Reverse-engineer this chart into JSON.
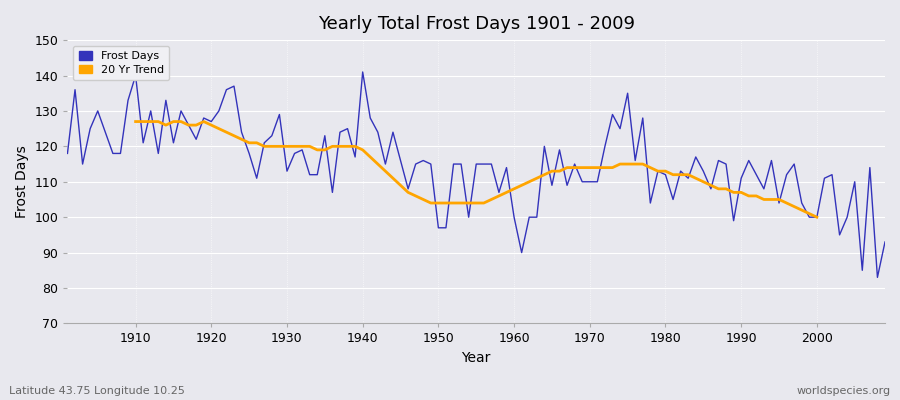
{
  "title": "Yearly Total Frost Days 1901 - 2009",
  "xlabel": "Year",
  "ylabel": "Frost Days",
  "subtitle_left": "Latitude 43.75 Longitude 10.25",
  "subtitle_right": "worldspecies.org",
  "ylim": [
    70,
    150
  ],
  "xlim": [
    1901,
    2009
  ],
  "line_color": "#3333bb",
  "trend_color": "#FFA500",
  "bg_color": "#e8e8ee",
  "grid_color": "#ffffff",
  "years": [
    1901,
    1902,
    1903,
    1904,
    1905,
    1906,
    1907,
    1908,
    1909,
    1910,
    1911,
    1912,
    1913,
    1914,
    1915,
    1916,
    1917,
    1918,
    1919,
    1920,
    1921,
    1922,
    1923,
    1924,
    1925,
    1926,
    1927,
    1928,
    1929,
    1930,
    1931,
    1932,
    1933,
    1934,
    1935,
    1936,
    1937,
    1938,
    1939,
    1940,
    1941,
    1942,
    1943,
    1944,
    1945,
    1946,
    1947,
    1948,
    1949,
    1950,
    1951,
    1952,
    1953,
    1954,
    1955,
    1956,
    1957,
    1958,
    1959,
    1960,
    1961,
    1962,
    1963,
    1964,
    1965,
    1966,
    1967,
    1968,
    1969,
    1970,
    1971,
    1972,
    1973,
    1974,
    1975,
    1976,
    1977,
    1978,
    1979,
    1980,
    1981,
    1982,
    1983,
    1984,
    1985,
    1986,
    1987,
    1988,
    1989,
    1990,
    1991,
    1992,
    1993,
    1994,
    1995,
    1996,
    1997,
    1998,
    1999,
    2000,
    2001,
    2002,
    2003,
    2004,
    2005,
    2006,
    2007,
    2008,
    2009
  ],
  "frost_days": [
    118,
    136,
    115,
    125,
    130,
    124,
    118,
    118,
    133,
    140,
    121,
    130,
    118,
    133,
    121,
    130,
    126,
    122,
    128,
    127,
    130,
    136,
    137,
    124,
    118,
    111,
    121,
    123,
    129,
    113,
    118,
    119,
    112,
    112,
    123,
    107,
    124,
    125,
    117,
    141,
    128,
    124,
    115,
    124,
    116,
    108,
    115,
    116,
    115,
    97,
    97,
    115,
    115,
    100,
    115,
    115,
    115,
    107,
    114,
    100,
    90,
    100,
    100,
    120,
    109,
    119,
    109,
    115,
    110,
    110,
    110,
    120,
    129,
    125,
    135,
    116,
    128,
    104,
    113,
    112,
    105,
    113,
    111,
    117,
    113,
    108,
    116,
    115,
    99,
    111,
    116,
    112,
    108,
    116,
    104,
    112,
    115,
    104,
    100,
    100,
    111,
    112,
    95,
    100,
    110,
    85,
    114,
    83,
    93
  ],
  "trend_years": [
    1901,
    1902,
    1903,
    1904,
    1905,
    1906,
    1907,
    1908,
    1909,
    1910,
    1911,
    1912,
    1913,
    1914,
    1915,
    1916,
    1917,
    1918,
    1919,
    1920,
    1921,
    1922,
    1923,
    1924,
    1925,
    1926,
    1927,
    1928,
    1929,
    1930,
    1931,
    1932,
    1933,
    1934,
    1935,
    1936,
    1937,
    1938,
    1939,
    1940,
    1941,
    1942,
    1943,
    1944,
    1945,
    1946,
    1947,
    1948,
    1949,
    1950,
    1951,
    1952,
    1953,
    1954,
    1955,
    1956,
    1957,
    1958,
    1959,
    1960,
    1961,
    1962,
    1963,
    1964,
    1965,
    1966,
    1967,
    1968,
    1969,
    1970,
    1971,
    1972,
    1973,
    1974,
    1975,
    1976,
    1977,
    1978,
    1979,
    1980,
    1981,
    1982,
    1983,
    1984,
    1985,
    1986,
    1987,
    1988,
    1989,
    1990,
    1991,
    1992,
    1993,
    1994,
    1995,
    1996,
    1997,
    1998,
    1999,
    2000,
    2001,
    2002,
    2003,
    2004,
    2005,
    2006,
    2007,
    2008,
    2009
  ],
  "trend_values": [
    null,
    null,
    null,
    null,
    null,
    null,
    null,
    null,
    null,
    127,
    127,
    127,
    127,
    126,
    127,
    127,
    126,
    126,
    127,
    126,
    125,
    124,
    123,
    122,
    121,
    121,
    120,
    120,
    120,
    120,
    120,
    120,
    120,
    119,
    119,
    120,
    120,
    120,
    120,
    119,
    117,
    115,
    113,
    111,
    109,
    107,
    106,
    105,
    104,
    104,
    104,
    104,
    104,
    104,
    104,
    104,
    105,
    106,
    107,
    108,
    109,
    110,
    111,
    112,
    113,
    113,
    114,
    114,
    114,
    114,
    114,
    114,
    114,
    115,
    115,
    115,
    115,
    114,
    113,
    113,
    112,
    112,
    112,
    111,
    110,
    109,
    108,
    108,
    107,
    107,
    106,
    106,
    105,
    105,
    105,
    104,
    103,
    102,
    101,
    100,
    null,
    null,
    null,
    null,
    null,
    null,
    null,
    null,
    null
  ],
  "xticks": [
    1910,
    1920,
    1930,
    1940,
    1950,
    1960,
    1970,
    1980,
    1990,
    2000
  ],
  "yticks": [
    70,
    80,
    90,
    100,
    110,
    120,
    130,
    140,
    150
  ]
}
